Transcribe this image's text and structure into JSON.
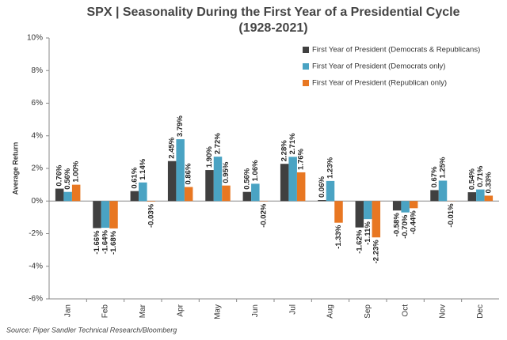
{
  "chart_data": {
    "type": "bar",
    "title": "SPX | Seasonality During the First Year of a Presidential Cycle",
    "subtitle": "(1928-2021)",
    "y_label": "Average Return",
    "source": "Source: Piper Sandler Technical Research/Bloomberg",
    "categories": [
      "Jan",
      "Feb",
      "Mar",
      "Apr",
      "May",
      "Jun",
      "Jul",
      "Aug",
      "Sep",
      "Oct",
      "Nov",
      "Dec"
    ],
    "series": [
      {
        "name": "First Year of President (Democrats & Republicans)",
        "color": "#404040",
        "values": [
          0.76,
          -1.66,
          0.61,
          2.45,
          1.9,
          0.56,
          2.28,
          0.06,
          -1.62,
          -0.58,
          0.67,
          0.54
        ],
        "value_labels": [
          "0.76%",
          "-1.66%",
          "0.61%",
          "2.45%",
          "1.90%",
          "0.56%",
          "2.28%",
          "0.06%",
          "-1.62%",
          "-0.58%",
          "0.67%",
          "0.54%"
        ]
      },
      {
        "name": "First Year of President (Democrats only)",
        "color": "#4aa3c3",
        "values": [
          0.56,
          -1.64,
          1.14,
          3.79,
          2.72,
          1.06,
          2.71,
          1.23,
          -1.11,
          -0.7,
          1.25,
          0.71
        ],
        "value_labels": [
          "0.56%",
          "-1.64%",
          "1.14%",
          "3.79%",
          "2.72%",
          "1.06%",
          "2.71%",
          "1.23%",
          "-1.11%",
          "-0.70%",
          "1.25%",
          "0.71%"
        ]
      },
      {
        "name": "First Year of President (Republican only)",
        "color": "#e87722",
        "values": [
          1.0,
          -1.68,
          -0.03,
          0.86,
          0.95,
          -0.02,
          1.76,
          -1.33,
          -2.23,
          -0.44,
          -0.01,
          0.33
        ],
        "value_labels": [
          "1.00%",
          "-1.68%",
          "-0.03%",
          "0.86%",
          "0.95%",
          "-0.02%",
          "1.76%",
          "-1.33%",
          "-2.23%",
          "-0.44%",
          "-0.01%",
          "0.33%"
        ]
      }
    ],
    "ylim": [
      -6,
      10
    ],
    "yticks": [
      {
        "value": -6,
        "label": "-6%"
      },
      {
        "value": -4,
        "label": "-4%"
      },
      {
        "value": -2,
        "label": "-2%"
      },
      {
        "value": 0,
        "label": "0%"
      },
      {
        "value": 2,
        "label": "2%"
      },
      {
        "value": 4,
        "label": "4%"
      },
      {
        "value": 6,
        "label": "6%"
      },
      {
        "value": 8,
        "label": "8%"
      },
      {
        "value": 10,
        "label": "10%"
      }
    ],
    "grid": false,
    "legend": "top-right"
  }
}
